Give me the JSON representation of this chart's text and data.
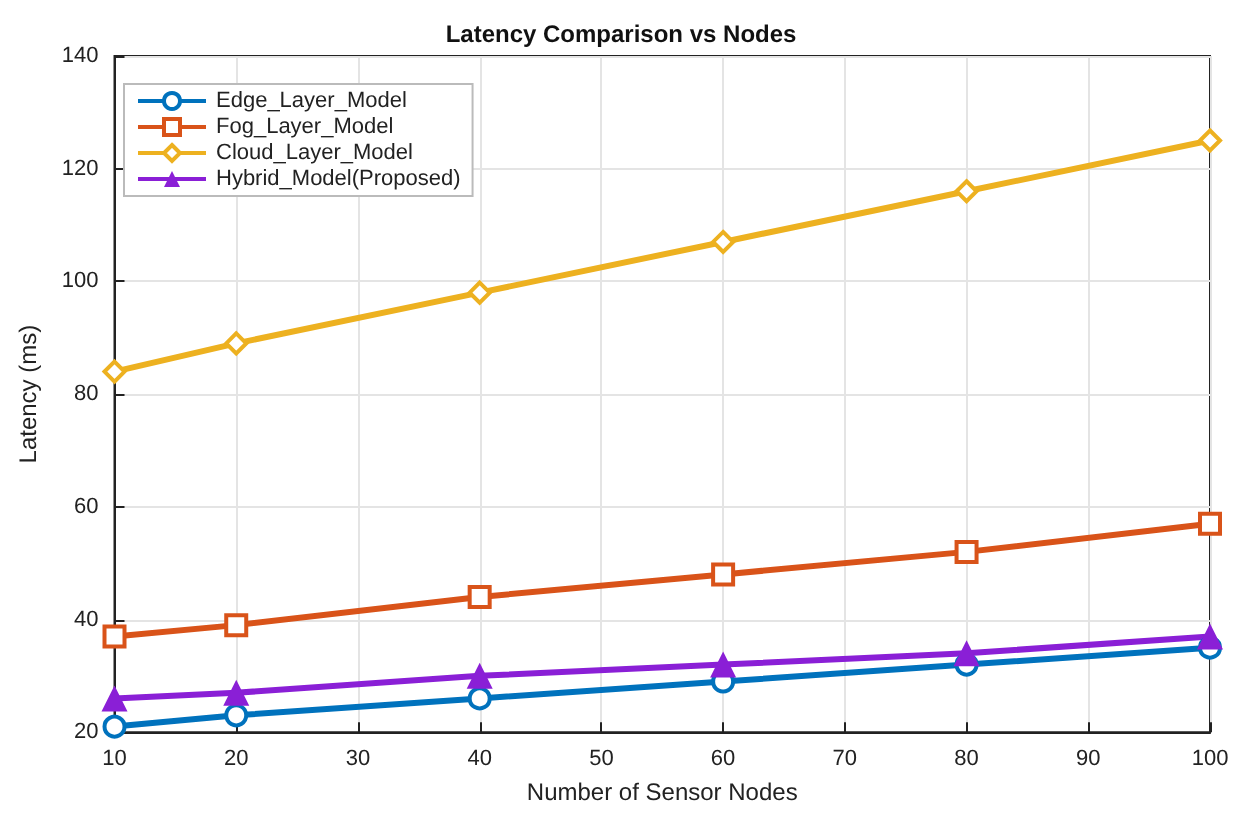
{
  "chart_data": {
    "type": "line",
    "title": "Latency Comparison vs Nodes",
    "xlabel": "Number of Sensor Nodes",
    "ylabel": "Latency (ms)",
    "x": [
      10,
      20,
      40,
      60,
      80,
      100
    ],
    "series": [
      {
        "name": "Edge_Layer_Model",
        "color": "#0072bd",
        "marker": "circle",
        "values": [
          21,
          23,
          26,
          29,
          32,
          35
        ]
      },
      {
        "name": "Fog_Layer_Model",
        "color": "#d95319",
        "marker": "square",
        "values": [
          37,
          39,
          44,
          48,
          52,
          57
        ]
      },
      {
        "name": "Cloud_Layer_Model",
        "color": "#edb120",
        "marker": "diamond",
        "values": [
          84,
          89,
          98,
          107,
          116,
          125
        ]
      },
      {
        "name": "Hybrid_Model(Proposed)",
        "color": "#8a1fd6",
        "marker": "triangle",
        "values": [
          26,
          27,
          30,
          32,
          34,
          37
        ]
      }
    ],
    "xlim": [
      10,
      100
    ],
    "xticks": [
      10,
      20,
      30,
      40,
      50,
      60,
      70,
      80,
      90,
      100
    ],
    "ylim": [
      20,
      140
    ],
    "yticks": [
      20,
      40,
      60,
      80,
      100,
      120,
      140
    ],
    "grid": true,
    "legend": "top left",
    "line_style": "solid"
  }
}
